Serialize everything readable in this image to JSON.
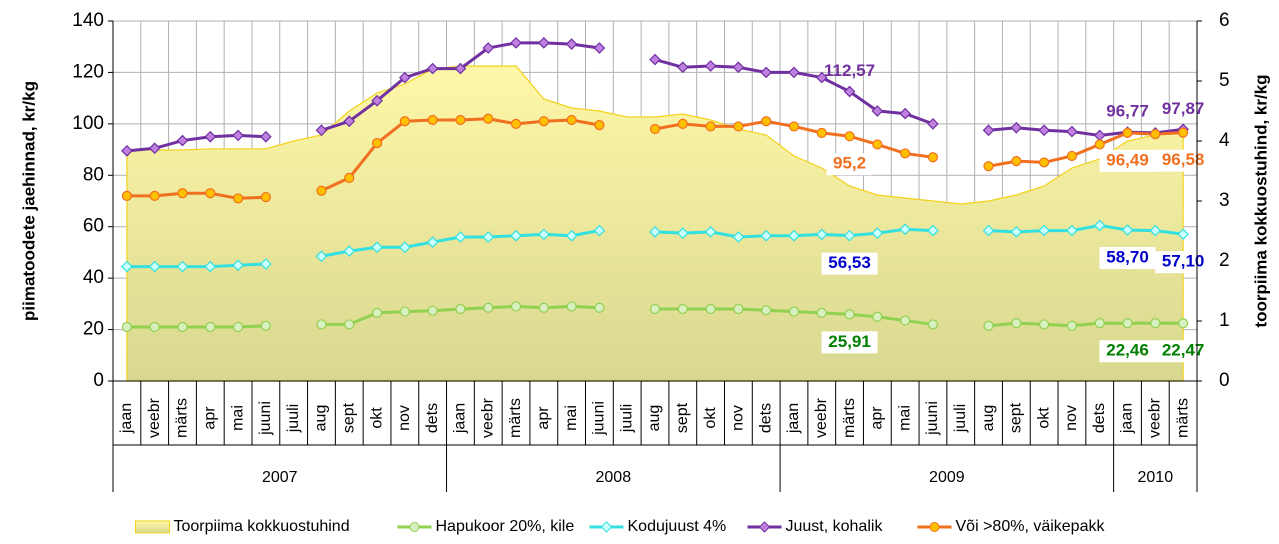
{
  "chart_data": {
    "type": "line",
    "categories": [
      "jaan",
      "veebr",
      "märts",
      "apr",
      "mai",
      "juuni",
      "juuli",
      "aug",
      "sept",
      "okt",
      "nov",
      "dets",
      "jaan",
      "veebr",
      "märts",
      "apr",
      "mai",
      "juuni",
      "juuli",
      "aug",
      "sept",
      "okt",
      "nov",
      "dets",
      "jaan",
      "veebr",
      "märts",
      "apr",
      "mai",
      "juuni",
      "juuli",
      "aug",
      "sept",
      "okt",
      "nov",
      "dets",
      "jaan",
      "veebr",
      "märts"
    ],
    "category_groups": [
      {
        "label": "2007",
        "size": 12
      },
      {
        "label": "2008",
        "size": 12
      },
      {
        "label": "2009",
        "size": 12
      },
      {
        "label": "2010",
        "size": 3
      }
    ],
    "ylabel": "piimatoodete jaehinnad, kr/kg",
    "y2label": "toorpiima kokkuostuhind, kr/kg",
    "ylim": [
      0,
      140
    ],
    "yticks": [
      0,
      20,
      40,
      60,
      80,
      100,
      120,
      140
    ],
    "y2lim": [
      0,
      6
    ],
    "y2ticks": [
      0,
      1,
      2,
      3,
      4,
      5,
      6
    ],
    "grid": true,
    "legend": "bottom",
    "series": [
      {
        "name": "Toorpiima kokkuostuhind",
        "kind": "area",
        "axis": "y2",
        "color": "#f2d21b",
        "values": [
          3.85,
          3.85,
          3.85,
          3.87,
          3.87,
          3.87,
          4.0,
          4.1,
          4.5,
          4.8,
          4.95,
          5.2,
          5.25,
          5.25,
          5.25,
          4.7,
          4.55,
          4.5,
          4.4,
          4.4,
          4.45,
          4.35,
          4.2,
          4.1,
          3.75,
          3.55,
          3.25,
          3.1,
          3.05,
          3.0,
          2.95,
          3.0,
          3.1,
          3.25,
          3.55,
          3.7,
          4.0,
          4.1,
          4.15
        ]
      },
      {
        "name": "Hapukoor 20%, kile",
        "kind": "line",
        "color": "#92d050",
        "marker_fill": "#d8f0c0",
        "label_color": "#008000",
        "values": [
          21,
          21,
          21,
          21,
          21,
          21.5,
          null,
          22,
          22,
          26.5,
          27,
          27.3,
          28,
          28.5,
          29,
          28.5,
          29,
          28.5,
          null,
          28,
          28,
          28,
          28,
          27.5,
          27,
          26.5,
          25.91,
          25,
          23.5,
          22,
          null,
          21.5,
          22.5,
          22,
          21.5,
          22.5,
          22.46,
          22.5,
          22.47
        ],
        "value_labels": [
          null,
          null,
          null,
          null,
          null,
          null,
          null,
          null,
          null,
          null,
          null,
          null,
          null,
          null,
          null,
          null,
          null,
          null,
          null,
          null,
          null,
          null,
          null,
          null,
          null,
          null,
          "25,91",
          null,
          null,
          null,
          null,
          null,
          null,
          null,
          null,
          null,
          "22,46",
          null,
          "22,47"
        ]
      },
      {
        "name": "Kodujuust 4%",
        "kind": "line",
        "color": "#33e0e0",
        "marker_fill": "#ccffff",
        "label_color": "#0000cc",
        "values": [
          44.5,
          44.5,
          44.5,
          44.5,
          45,
          45.5,
          null,
          48.5,
          50.5,
          52,
          52,
          54,
          56,
          56,
          56.5,
          57,
          56.5,
          58.5,
          null,
          58,
          57.5,
          58,
          56,
          56.5,
          56.5,
          57,
          56.53,
          57.5,
          59,
          58.5,
          null,
          58.5,
          58,
          58.5,
          58.5,
          60.5,
          58.7,
          58.5,
          57.1
        ],
        "value_labels": [
          null,
          null,
          null,
          null,
          null,
          null,
          null,
          null,
          null,
          null,
          null,
          null,
          null,
          null,
          null,
          null,
          null,
          null,
          null,
          null,
          null,
          null,
          null,
          null,
          null,
          null,
          "56,53",
          null,
          null,
          null,
          null,
          null,
          null,
          null,
          null,
          null,
          "58,70",
          null,
          "57,10"
        ]
      },
      {
        "name": "Juust, kohalik",
        "kind": "line",
        "color": "#7030a0",
        "marker_fill": "#c080e0",
        "label_color": "#7030a0",
        "values": [
          89.5,
          90.5,
          93.5,
          95,
          95.5,
          95,
          null,
          97.5,
          101,
          109,
          118,
          121.5,
          121.5,
          129.5,
          131.5,
          131.5,
          131,
          129.5,
          null,
          125,
          122,
          122.5,
          122,
          120,
          120,
          118,
          112.57,
          105,
          104,
          100,
          null,
          97.5,
          98.5,
          97.5,
          97,
          95.5,
          96.77,
          96.5,
          97.87
        ],
        "value_labels": [
          null,
          null,
          null,
          null,
          null,
          null,
          null,
          null,
          null,
          null,
          null,
          null,
          null,
          null,
          null,
          null,
          null,
          null,
          null,
          null,
          null,
          null,
          null,
          null,
          null,
          null,
          "112,57",
          null,
          null,
          null,
          null,
          null,
          null,
          null,
          null,
          null,
          "96,77",
          null,
          "97,87"
        ]
      },
      {
        "name": "Või >80%, väikepakk",
        "kind": "line",
        "color": "#f07020",
        "marker_fill": "#ffc000",
        "label_color": "#f07020",
        "values": [
          72,
          72,
          73,
          73,
          71,
          71.5,
          null,
          74,
          79,
          92.5,
          101,
          101.5,
          101.5,
          102,
          100,
          101,
          101.5,
          99.5,
          null,
          98,
          100,
          99,
          99,
          101,
          99,
          96.5,
          95.2,
          92,
          88.5,
          87,
          null,
          83.5,
          85.5,
          85,
          87.5,
          92,
          96.49,
          96,
          96.58
        ],
        "value_labels": [
          null,
          null,
          null,
          null,
          null,
          null,
          null,
          null,
          null,
          null,
          null,
          null,
          null,
          null,
          null,
          null,
          null,
          null,
          null,
          null,
          null,
          null,
          null,
          null,
          null,
          null,
          "95,2",
          null,
          null,
          null,
          null,
          null,
          null,
          null,
          null,
          null,
          "96,49",
          null,
          "96,58"
        ]
      }
    ]
  }
}
